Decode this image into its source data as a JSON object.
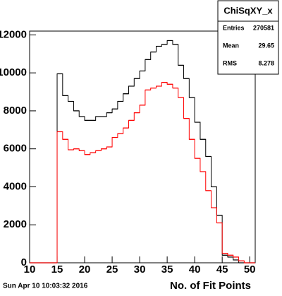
{
  "chart_data": {
    "type": "histogram",
    "bins": [
      10,
      11,
      12,
      13,
      14,
      15,
      16,
      17,
      18,
      19,
      20,
      21,
      22,
      23,
      24,
      25,
      26,
      27,
      28,
      29,
      30,
      31,
      32,
      33,
      34,
      35,
      36,
      37,
      38,
      39,
      40,
      41,
      42,
      43,
      44,
      45,
      46,
      47,
      48,
      49,
      50,
      51
    ],
    "series": [
      {
        "color": "#000000",
        "values": [
          0,
          0,
          0,
          0,
          0,
          9950,
          8800,
          8500,
          8000,
          7700,
          7500,
          7500,
          7700,
          7700,
          7900,
          8100,
          8500,
          8900,
          9300,
          9700,
          10100,
          10700,
          11100,
          11400,
          11500,
          11700,
          11500,
          10400,
          9700,
          8700,
          7400,
          6500,
          5600,
          4000,
          2500,
          400,
          300,
          150,
          0,
          0,
          0
        ]
      },
      {
        "color": "#ff0000",
        "values": [
          0,
          0,
          0,
          0,
          0,
          6900,
          6500,
          5950,
          6000,
          5900,
          5700,
          5800,
          5900,
          6000,
          6100,
          6600,
          6800,
          7100,
          7500,
          7900,
          8300,
          9100,
          9200,
          9300,
          9500,
          9400,
          9200,
          8700,
          7600,
          6500,
          5500,
          4800,
          3800,
          2900,
          2100,
          500,
          400,
          300,
          100,
          0,
          0
        ]
      }
    ],
    "xlim": [
      10,
      51
    ],
    "ylim": [
      0,
      12200
    ],
    "xticks": [
      10,
      15,
      20,
      25,
      30,
      35,
      40,
      45,
      50
    ],
    "yticks": [
      0,
      2000,
      4000,
      6000,
      8000,
      10000,
      12000
    ],
    "xlabel": "No. of Fit Points",
    "footer": "Sun Apr 10 10:03:32 2016",
    "stats": {
      "title": "ChiSqXY_x",
      "rows": [
        [
          "Entries",
          "270581"
        ],
        [
          "Mean",
          "29.65"
        ],
        [
          "RMS",
          "8.278"
        ]
      ]
    }
  }
}
